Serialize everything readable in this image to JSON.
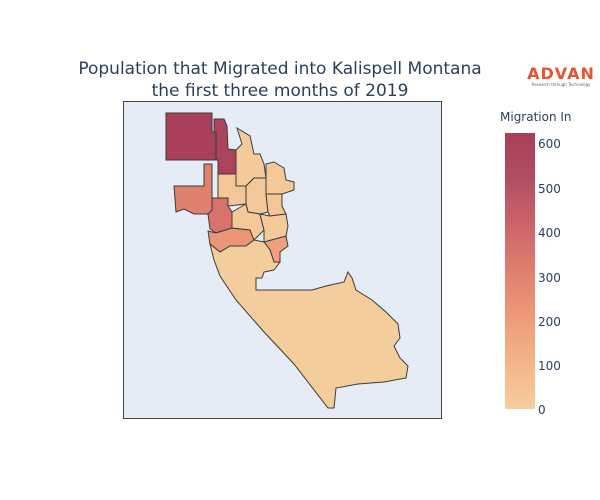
{
  "title_line1": "Population that Migrated into Kalispell Montana",
  "title_line2": "the first three months of 2019",
  "logo": {
    "word": "ADVAN",
    "tagline": "Research through Technology"
  },
  "colorbar": {
    "title": "Migration In",
    "ticks": [
      "600",
      "500",
      "400",
      "300",
      "200",
      "100",
      "0"
    ],
    "min": 0,
    "max": 625
  },
  "chart_data": {
    "type": "choropleth",
    "metric": "Migration In",
    "colorscale": [
      "#f4cf9e",
      "#f3b589",
      "#ee9a78",
      "#e07f6e",
      "#cc6469",
      "#b24e62",
      "#a93f5b"
    ],
    "regions": [
      {
        "id": "a",
        "value": 625
      },
      {
        "id": "b",
        "value": 600
      },
      {
        "id": "c",
        "value": 310
      },
      {
        "id": "d",
        "value": 360
      },
      {
        "id": "e",
        "value": 230
      },
      {
        "id": "f",
        "value": 180
      },
      {
        "id": "g",
        "value": 20
      },
      {
        "id": "h",
        "value": 30
      },
      {
        "id": "i",
        "value": 40
      },
      {
        "id": "j",
        "value": 25
      },
      {
        "id": "k",
        "value": 35
      },
      {
        "id": "l",
        "value": 30
      },
      {
        "id": "m",
        "value": 20
      },
      {
        "id": "n",
        "value": 10
      }
    ]
  }
}
